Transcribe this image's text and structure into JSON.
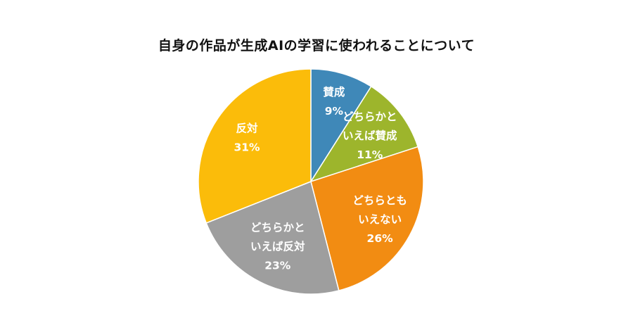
{
  "chart_data": {
    "type": "pie",
    "title": "自身の作品が生成AIの学習に使われることについて",
    "start_angle_deg": 0,
    "direction": "clockwise",
    "slices": [
      {
        "label_lines": [
          "賛成"
        ],
        "percent_label": "9%",
        "value": 9,
        "color": "#3F88B8"
      },
      {
        "label_lines": [
          "どちらかと",
          "いえば賛成"
        ],
        "percent_label": "11%",
        "value": 11,
        "color": "#9DB52C"
      },
      {
        "label_lines": [
          "どちらとも",
          "いえない"
        ],
        "percent_label": "26%",
        "value": 26,
        "color": "#F28C12"
      },
      {
        "label_lines": [
          "どちらかと",
          "いえば反対"
        ],
        "percent_label": "23%",
        "value": 23,
        "color": "#9E9E9E"
      },
      {
        "label_lines": [
          "反対"
        ],
        "percent_label": "31%",
        "value": 31,
        "color": "#FBBC0A"
      }
    ]
  }
}
